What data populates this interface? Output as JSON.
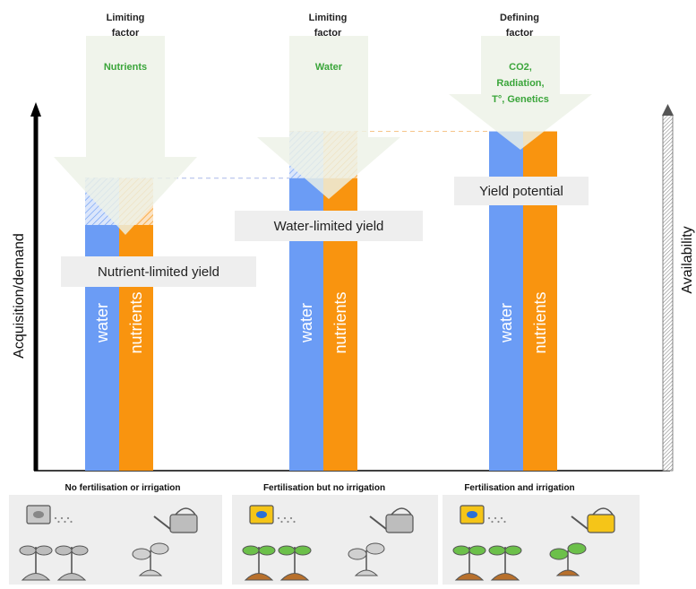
{
  "axes": {
    "left_label": "Acquisition/demand",
    "right_label": "Availability"
  },
  "colors": {
    "water": "#6b9cf5",
    "nutrients": "#f9940f",
    "arrow_fill": "#edf2e6",
    "factor_green": "#3aa53a",
    "label_box": "#eeeeee",
    "panel_bg": "#eeeeee"
  },
  "bar_labels": {
    "water": "water",
    "nutrients": "nutrients"
  },
  "columns": [
    {
      "factor_heading": [
        "Limiting",
        "factor"
      ],
      "factor_lines": [
        "Nutrients"
      ],
      "yield_label": "Nutrient-limited yield",
      "scenario_label": "No fertilisation or irrigation",
      "water_level": 0.63,
      "nutrient_level": 0.63,
      "potential_level": 0.75,
      "icons": {
        "fertiliser": "grey",
        "can": "grey"
      }
    },
    {
      "factor_heading": [
        "Limiting",
        "factor"
      ],
      "factor_lines": [
        "Water"
      ],
      "yield_label": "Water-limited yield",
      "scenario_label": "Fertilisation but no irrigation",
      "water_level": 0.75,
      "nutrient_level": 0.75,
      "potential_level": 0.87,
      "icons": {
        "fertiliser": "color",
        "can": "grey"
      }
    },
    {
      "factor_heading": [
        "Defining",
        "factor"
      ],
      "factor_lines": [
        "CO2,",
        "Radiation,",
        "T°, Genetics"
      ],
      "yield_label": "Yield potential",
      "scenario_label": "Fertilisation and irrigation",
      "water_level": 0.87,
      "nutrient_level": 0.87,
      "potential_level": 0.87,
      "icons": {
        "fertiliser": "color",
        "can": "color"
      }
    }
  ]
}
